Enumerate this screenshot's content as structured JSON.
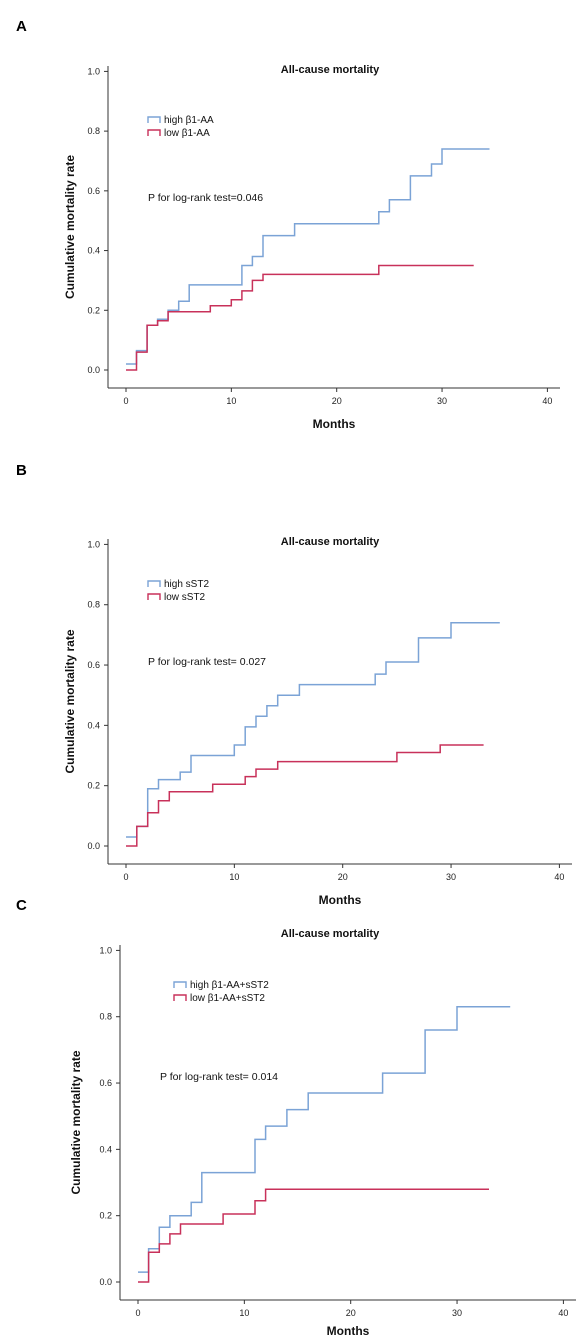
{
  "chart_data": [
    {
      "panel": "A",
      "type": "line",
      "step": true,
      "title": "All-cause mortality",
      "xlabel": "Months",
      "ylabel": "Cumulative mortality rate",
      "xlim": [
        0,
        40
      ],
      "ylim": [
        0,
        1
      ],
      "xticks": [
        "0",
        "10",
        "20",
        "30",
        "40"
      ],
      "yticks": [
        "0.0",
        "0.2",
        "0.4",
        "0.6",
        "0.8",
        "1.0"
      ],
      "annotation": "P for log-rank test=0.046",
      "legend_position": "top-left",
      "grid": false,
      "series": [
        {
          "name": "high β1-AA",
          "color": "#7ba3d6",
          "x": [
            0,
            1,
            2,
            3,
            4,
            5,
            6,
            11,
            12,
            13,
            14,
            16,
            23,
            24,
            25,
            27,
            29,
            30,
            34.5
          ],
          "y": [
            0.02,
            0.065,
            0.15,
            0.17,
            0.2,
            0.23,
            0.285,
            0.35,
            0.38,
            0.45,
            0.45,
            0.49,
            0.49,
            0.53,
            0.57,
            0.65,
            0.69,
            0.74,
            0.74
          ]
        },
        {
          "name": "low β1-AA",
          "color": "#c8315a",
          "x": [
            0,
            1,
            2,
            3,
            4,
            8,
            10,
            11,
            12,
            13,
            24,
            33
          ],
          "y": [
            0,
            0.06,
            0.15,
            0.165,
            0.195,
            0.215,
            0.235,
            0.265,
            0.3,
            0.32,
            0.35,
            0.35
          ]
        }
      ]
    },
    {
      "panel": "B",
      "type": "line",
      "step": true,
      "title": "All-cause mortality",
      "xlabel": "Months",
      "ylabel": "Cumulative mortality rate",
      "xlim": [
        0,
        40
      ],
      "ylim": [
        0,
        1
      ],
      "xticks": [
        "0",
        "10",
        "20",
        "30",
        "40"
      ],
      "yticks": [
        "0.0",
        "0.2",
        "0.4",
        "0.6",
        "0.8",
        "1.0"
      ],
      "annotation": "P for log-rank test= 0.027",
      "legend_position": "top-left",
      "grid": false,
      "series": [
        {
          "name": "high sST2",
          "color": "#7ba3d6",
          "x": [
            0,
            1,
            2,
            3,
            5,
            6,
            10,
            11,
            12,
            13,
            14,
            16,
            23,
            24,
            27,
            30,
            34.5
          ],
          "y": [
            0.03,
            0.065,
            0.19,
            0.22,
            0.245,
            0.3,
            0.335,
            0.395,
            0.43,
            0.465,
            0.5,
            0.535,
            0.57,
            0.61,
            0.69,
            0.74,
            0.74
          ]
        },
        {
          "name": "low sST2",
          "color": "#c8315a",
          "x": [
            0,
            1,
            2,
            3,
            4,
            8,
            11,
            12,
            14,
            25,
            29,
            33
          ],
          "y": [
            0,
            0.065,
            0.11,
            0.15,
            0.18,
            0.205,
            0.23,
            0.255,
            0.28,
            0.31,
            0.335,
            0.335
          ]
        }
      ]
    },
    {
      "panel": "C",
      "type": "line",
      "step": true,
      "title": "All-cause mortality",
      "xlabel": "Months",
      "ylabel": "Cumulative mortality rate",
      "xlim": [
        0,
        40
      ],
      "ylim": [
        0,
        1
      ],
      "xticks": [
        "0",
        "10",
        "20",
        "30",
        "40"
      ],
      "yticks": [
        "0.0",
        "0.2",
        "0.4",
        "0.6",
        "0.8",
        "1.0"
      ],
      "annotation": "P for log-rank test= 0.014",
      "legend_position": "top-left",
      "grid": false,
      "series": [
        {
          "name": "high β1-AA+sST2",
          "color": "#7ba3d6",
          "x": [
            0,
            1,
            2,
            3,
            5,
            6,
            11,
            12,
            14,
            16,
            23,
            27,
            30,
            35
          ],
          "y": [
            0.03,
            0.1,
            0.165,
            0.2,
            0.24,
            0.33,
            0.43,
            0.47,
            0.52,
            0.57,
            0.63,
            0.76,
            0.83,
            0.83
          ]
        },
        {
          "name": "low β1-AA+sST2",
          "color": "#c8315a",
          "x": [
            0,
            1,
            2,
            3,
            4,
            8,
            11,
            12,
            33
          ],
          "y": [
            0,
            0.09,
            0.115,
            0.145,
            0.175,
            0.205,
            0.245,
            0.28,
            0.28
          ]
        }
      ]
    }
  ]
}
